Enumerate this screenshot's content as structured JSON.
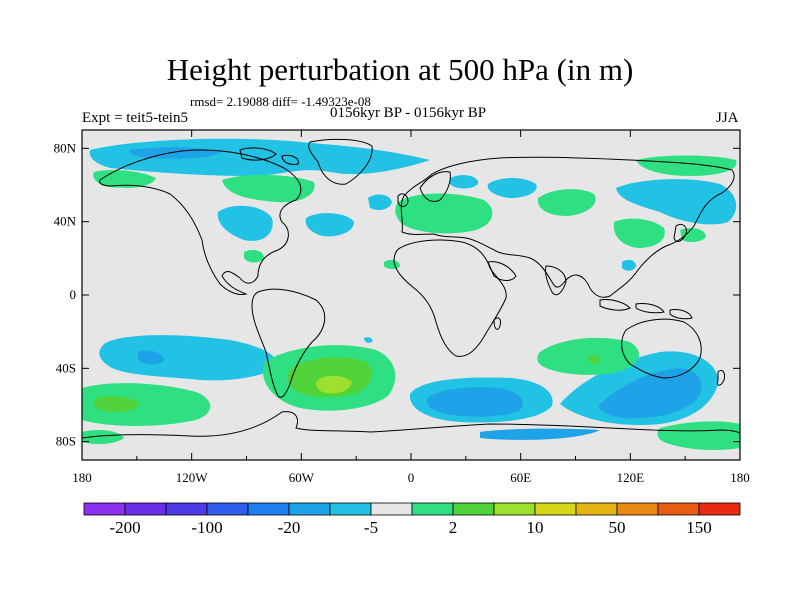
{
  "header": {
    "title": "Height perturbation at 500 hPa (in m)",
    "rmsd_line": "rmsd= 2.19088 diff= -1.49323e-08",
    "experiment": "Expt = teit5-tein5",
    "period": "0156kyr BP - 0156kyr BP",
    "season": "JJA"
  },
  "map": {
    "projection": "cylindrical-equidistant",
    "lon_range": [
      -180,
      180
    ],
    "lat_range": [
      -90,
      90
    ],
    "lat_ticks": [
      {
        "value": 80,
        "label": "80N"
      },
      {
        "value": 40,
        "label": "40N"
      },
      {
        "value": 0,
        "label": "0"
      },
      {
        "value": -40,
        "label": "40S"
      },
      {
        "value": -80,
        "label": "80S"
      }
    ],
    "lon_ticks": [
      {
        "value": -180,
        "label": "180"
      },
      {
        "value": -120,
        "label": "120W"
      },
      {
        "value": -60,
        "label": "60W"
      },
      {
        "value": 0,
        "label": "0"
      },
      {
        "value": 60,
        "label": "60E"
      },
      {
        "value": 120,
        "label": "120E"
      },
      {
        "value": 180,
        "label": "180"
      }
    ],
    "background_color": "#e6e6e6",
    "coastline_color": "#000000"
  },
  "colorbar": {
    "colors": [
      "#8c30f0",
      "#6a2ee8",
      "#4e3ae6",
      "#2f5cec",
      "#1f7ef0",
      "#1ea2e8",
      "#22c2e4",
      "#e6e6e6",
      "#2ee082",
      "#50d23a",
      "#9ee02e",
      "#d4d818",
      "#e6b410",
      "#e88a12",
      "#e85c12",
      "#e82a10"
    ],
    "labels": [
      {
        "index": 1,
        "text": "-200"
      },
      {
        "index": 3,
        "text": "-100"
      },
      {
        "index": 5,
        "text": "-20"
      },
      {
        "index": 7,
        "text": "-5"
      },
      {
        "index": 9,
        "text": "2"
      },
      {
        "index": 11,
        "text": "10"
      },
      {
        "index": 13,
        "text": "50"
      },
      {
        "index": 15,
        "text": "150"
      }
    ]
  }
}
